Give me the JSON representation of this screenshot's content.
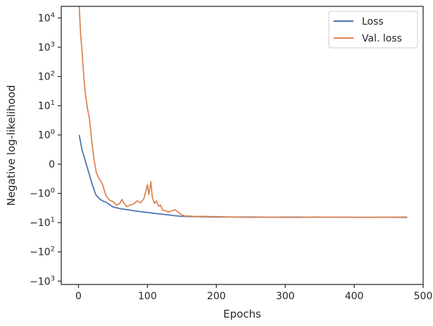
{
  "chart_data": {
    "type": "line",
    "xlabel": "Epochs",
    "ylabel": "Negative log-likelihood",
    "xlim": [
      -25,
      500
    ],
    "xticks": [
      0,
      100,
      200,
      300,
      400,
      500
    ],
    "yscale": "symlog",
    "ylim": [
      -1300,
      25000
    ],
    "yticks": [
      {
        "value": 10000,
        "base": "10",
        "exp": "4"
      },
      {
        "value": 1000,
        "base": "10",
        "exp": "3"
      },
      {
        "value": 100,
        "base": "10",
        "exp": "2"
      },
      {
        "value": 10,
        "base": "10",
        "exp": "1"
      },
      {
        "value": 1,
        "base": "10",
        "exp": "0"
      },
      {
        "value": 0,
        "base": "0",
        "exp": ""
      },
      {
        "value": -1,
        "base": "−10",
        "exp": "0"
      },
      {
        "value": -10,
        "base": "−10",
        "exp": "1"
      },
      {
        "value": -100,
        "base": "−10",
        "exp": "2"
      },
      {
        "value": -1000,
        "base": "−10",
        "exp": "3"
      }
    ],
    "grid": false,
    "legend_position": "top-right",
    "series": [
      {
        "name": "Loss",
        "color": "#4c72b0",
        "x": [
          1,
          5,
          10,
          15,
          20,
          25,
          30,
          35,
          40,
          45,
          50,
          60,
          70,
          80,
          90,
          100,
          110,
          120,
          130,
          140,
          150,
          160,
          180,
          200,
          250,
          300,
          350,
          400,
          450,
          477
        ],
        "y": [
          1.0,
          0.5,
          0.1,
          -0.3,
          -0.7,
          -1.1,
          -1.5,
          -1.8,
          -2.0,
          -2.4,
          -2.9,
          -3.3,
          -3.6,
          -3.9,
          -4.2,
          -4.5,
          -4.8,
          -5.1,
          -5.4,
          -5.8,
          -6.1,
          -6.2,
          -6.3,
          -6.4,
          -6.45,
          -6.5,
          -6.5,
          -6.55,
          -6.55,
          -6.6
        ]
      },
      {
        "name": "Val. loss",
        "color": "#dd8452",
        "x": [
          1,
          3,
          5,
          8,
          10,
          13,
          16,
          18,
          20,
          23,
          26,
          30,
          35,
          40,
          45,
          50,
          55,
          60,
          63,
          66,
          70,
          75,
          80,
          85,
          90,
          95,
          100,
          102,
          105,
          107,
          110,
          113,
          116,
          119,
          122,
          126,
          130,
          135,
          140,
          145,
          150,
          155,
          160,
          170,
          180,
          190,
          200,
          220,
          250,
          280,
          300,
          320,
          340,
          360,
          380,
          400,
          420,
          440,
          460,
          477
        ],
        "y": [
          25000,
          3000,
          800,
          80,
          25,
          8,
          3.5,
          1.2,
          0.6,
          0.1,
          -0.3,
          -0.5,
          -0.7,
          -1.2,
          -1.7,
          -1.9,
          -2.5,
          -2.2,
          -1.6,
          -2.2,
          -2.8,
          -2.5,
          -2.3,
          -1.8,
          -2.1,
          -1.5,
          -0.7,
          -1.1,
          -0.6,
          -1.3,
          -2.2,
          -1.8,
          -2.7,
          -2.5,
          -3.7,
          -3.9,
          -4.4,
          -4.0,
          -3.6,
          -4.4,
          -5.4,
          -6.0,
          -5.9,
          -6.2,
          -6.1,
          -6.2,
          -6.2,
          -6.4,
          -6.6,
          -6.5,
          -6.6,
          -6.6,
          -6.4,
          -6.5,
          -6.5,
          -6.6,
          -6.6,
          -6.55,
          -6.5,
          -6.4
        ]
      }
    ]
  }
}
